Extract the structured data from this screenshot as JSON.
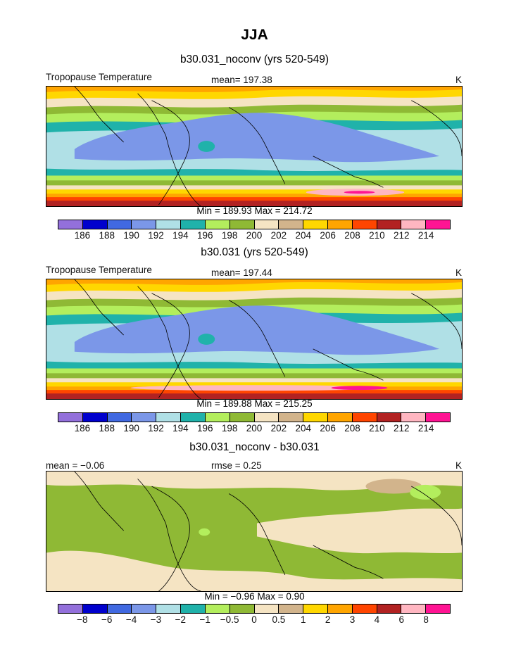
{
  "figure": {
    "title": "JJA"
  },
  "chart_data": [
    {
      "type": "heatmap",
      "title": "b30.031_noconv (yrs 520-549)",
      "variable": "Tropopause Temperature",
      "mean_label": "mean=",
      "mean": "197.38",
      "units": "K",
      "stats_text": "Min = 189.93 Max = 214.72",
      "min": 189.93,
      "max": 214.72,
      "colorbar": {
        "colors": [
          "#9370db",
          "#0000cd",
          "#4169e1",
          "#7b97e8",
          "#b0e0e6",
          "#20b2aa",
          "#b3ee5d",
          "#8fb935",
          "#f5e4c3",
          "#d2b48c",
          "#ffd700",
          "#ffa500",
          "#ff4500",
          "#b22222",
          "#ffb6c1",
          "#ff1493"
        ],
        "labels": [
          "186",
          "188",
          "190",
          "192",
          "194",
          "196",
          "198",
          "200",
          "202",
          "204",
          "206",
          "208",
          "210",
          "212",
          "214"
        ]
      }
    },
    {
      "type": "heatmap",
      "title": "b30.031 (yrs 520-549)",
      "variable": "Tropopause Temperature",
      "mean_label": "mean=",
      "mean": "197.44",
      "units": "K",
      "stats_text": "Min = 189.88 Max = 215.25",
      "min": 189.88,
      "max": 215.25,
      "colorbar": {
        "colors": [
          "#9370db",
          "#0000cd",
          "#4169e1",
          "#7b97e8",
          "#b0e0e6",
          "#20b2aa",
          "#b3ee5d",
          "#8fb935",
          "#f5e4c3",
          "#d2b48c",
          "#ffd700",
          "#ffa500",
          "#ff4500",
          "#b22222",
          "#ffb6c1",
          "#ff1493"
        ],
        "labels": [
          "186",
          "188",
          "190",
          "192",
          "194",
          "196",
          "198",
          "200",
          "202",
          "204",
          "206",
          "208",
          "210",
          "212",
          "214"
        ]
      }
    },
    {
      "type": "heatmap",
      "title": "b30.031_noconv - b30.031",
      "mean_text": "mean =    −0.06",
      "rmse_text": "rmse =     0.25",
      "units": "K",
      "stats_text": "Min =    −0.96 Max =     0.90",
      "min": -0.96,
      "max": 0.9,
      "mean": -0.06,
      "rmse": 0.25,
      "colorbar": {
        "colors": [
          "#9370db",
          "#0000cd",
          "#4169e1",
          "#7b97e8",
          "#b0e0e6",
          "#20b2aa",
          "#b3ee5d",
          "#8fb935",
          "#f5e4c3",
          "#d2b48c",
          "#ffd700",
          "#ffa500",
          "#ff4500",
          "#b22222",
          "#ffb6c1",
          "#ff1493"
        ],
        "labels": [
          "−8",
          "−6",
          "−4",
          "−3",
          "−2",
          "−1",
          "−0.5",
          "0",
          "0.5",
          "1",
          "2",
          "3",
          "4",
          "6",
          "8"
        ]
      }
    }
  ]
}
